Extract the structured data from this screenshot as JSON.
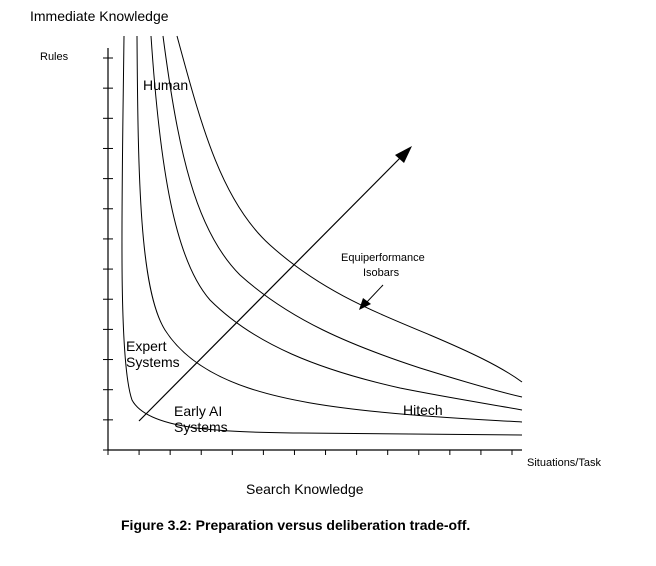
{
  "diagram": {
    "y_axis_title": "Immediate Knowledge",
    "y_axis_unit": "Rules",
    "x_axis_title": "Search Knowledge",
    "x_axis_unit": "Situations/Task",
    "caption": "Figure 3.2:  Preparation versus deliberation trade-off.",
    "region_labels": {
      "human": "Human",
      "expert_line1": "Expert",
      "expert_line2": "Systems",
      "early_line1": "Early AI",
      "early_line2": "Systems",
      "hitech": "Hitech"
    },
    "annotation": {
      "line1": "Equiperformance",
      "line2": "Isobars"
    },
    "isobar_count": 5,
    "tick_count_x": 13,
    "tick_count_y": 13
  }
}
